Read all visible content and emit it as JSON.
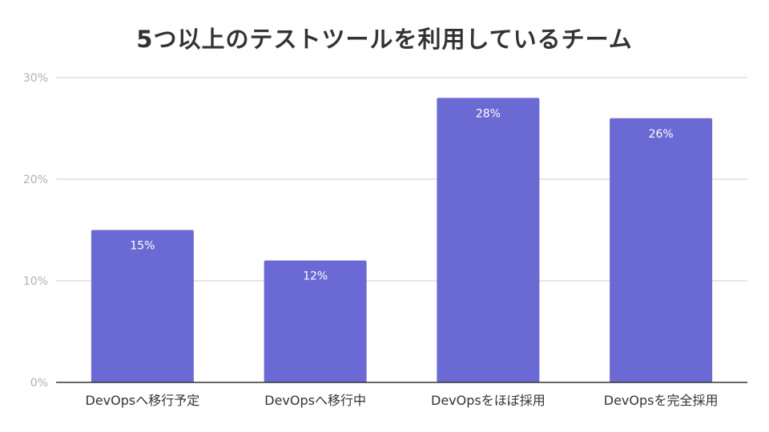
{
  "chart_data": {
    "type": "bar",
    "title": "5つ以上のテストツールを利用しているチーム",
    "categories": [
      "DevOpsへ移行予定",
      "DevOpsへ移行中",
      "DevOpsをほぼ採用",
      "DevOpsを完全採用"
    ],
    "values": [
      15,
      12,
      28,
      26
    ],
    "data_labels": [
      "15%",
      "12%",
      "28%",
      "26%"
    ],
    "ylim": [
      0,
      30
    ],
    "yticks": [
      0,
      10,
      20,
      30
    ],
    "ytick_labels": [
      "0%",
      "10%",
      "20%",
      "30%"
    ],
    "xlabel": "",
    "ylabel": "",
    "grid": true,
    "legend": "none",
    "colors": {
      "bar": "#6b69d3",
      "grid": "#cccccc",
      "axis": "#333333"
    }
  }
}
